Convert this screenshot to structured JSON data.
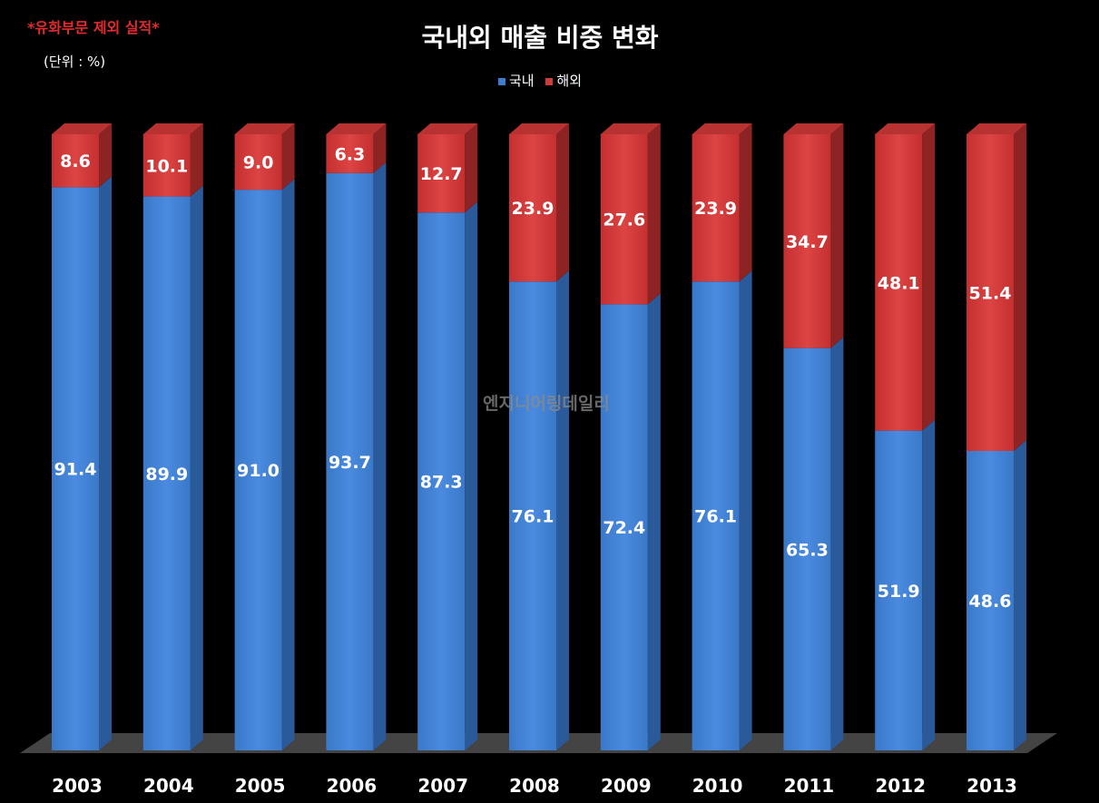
{
  "header": {
    "note": "*유화부문 제외 실적*",
    "unit": "(단위 : %)"
  },
  "watermark": "엔지니어링데일리",
  "colors": {
    "domestic": "#3b7dd1",
    "overseas": "#d33a3a",
    "background": "#000000"
  },
  "chart_data": {
    "type": "bar",
    "stacked": true,
    "title": "국내외 매출 비중 변화",
    "xlabel": "",
    "ylabel": "",
    "ylim": [
      0,
      100
    ],
    "grid": false,
    "legend_position": "top-center",
    "categories": [
      "2003",
      "2004",
      "2005",
      "2006",
      "2007",
      "2008",
      "2009",
      "2010",
      "2011",
      "2012",
      "2013"
    ],
    "series": [
      {
        "name": "국내",
        "values": [
          91.4,
          89.9,
          91.0,
          93.7,
          87.3,
          76.1,
          72.4,
          76.1,
          65.3,
          51.9,
          48.6
        ]
      },
      {
        "name": "해외",
        "values": [
          8.6,
          10.1,
          9.0,
          6.3,
          12.7,
          23.9,
          27.6,
          23.9,
          34.7,
          48.1,
          51.4
        ]
      }
    ]
  }
}
